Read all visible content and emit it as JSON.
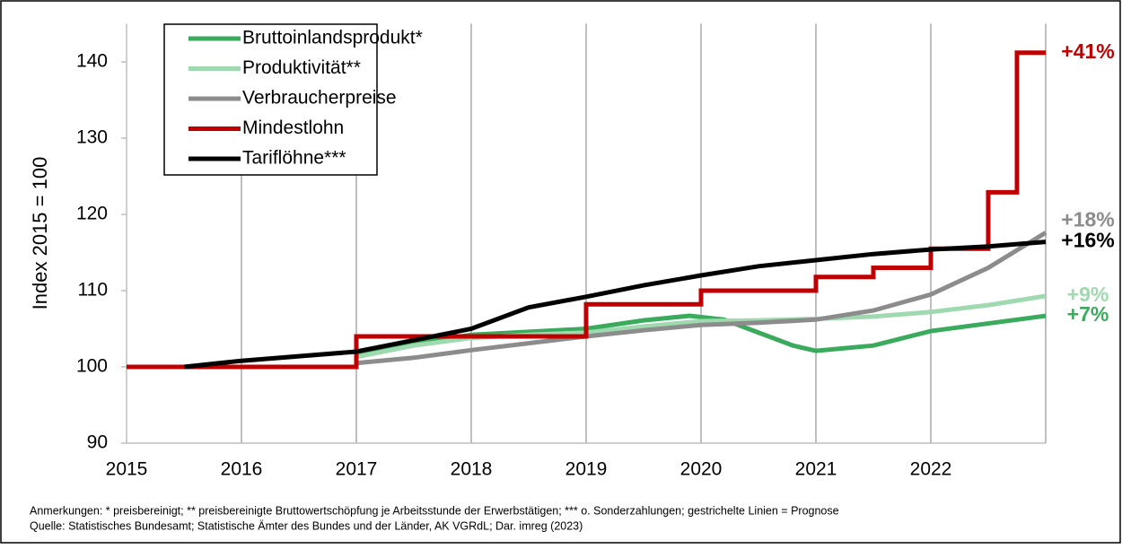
{
  "chart_data": {
    "type": "line",
    "ylabel": "Index 2015 = 100",
    "xlim": [
      2015,
      2023
    ],
    "xticks": [
      2015,
      2016,
      2017,
      2018,
      2019,
      2020,
      2021,
      2022
    ],
    "ylim": [
      90,
      145
    ],
    "yticks": [
      90,
      100,
      110,
      120,
      130,
      140
    ],
    "grid": true,
    "legend": "upper left",
    "series": [
      {
        "name": "Bruttoinlandsprodukt*",
        "color": "#3aaa5c",
        "end_label": "+7%",
        "x": [
          2017,
          2017.5,
          2018,
          2018.5,
          2019,
          2019.5,
          2019.9,
          2020.2,
          2020.5,
          2020.8,
          2021,
          2021.5,
          2022,
          2022.5,
          2023
        ],
        "values": [
          101.8,
          103.1,
          104.2,
          104.6,
          105,
          106.1,
          106.7,
          106.2,
          104.5,
          102.8,
          102.1,
          102.8,
          104.7,
          105.7,
          106.7
        ]
      },
      {
        "name": "Produktivität**",
        "color": "#9fd9b0",
        "end_label": "+9%",
        "x": [
          2017,
          2017.5,
          2018,
          2018.5,
          2019,
          2019.5,
          2020,
          2020.5,
          2021,
          2021.5,
          2022,
          2022.5,
          2023
        ],
        "values": [
          101.3,
          102.8,
          103.8,
          104.2,
          104.5,
          105.3,
          106,
          106.1,
          106.3,
          106.6,
          107.2,
          108.1,
          109.3
        ]
      },
      {
        "name": "Verbraucherpreise",
        "color": "#8c8c8c",
        "end_label": "+18%",
        "x": [
          2017,
          2017.5,
          2018,
          2018.5,
          2019,
          2019.5,
          2020,
          2020.5,
          2021,
          2021.5,
          2022,
          2022.5,
          2023
        ],
        "values": [
          100.5,
          101.2,
          102.2,
          103.1,
          104,
          104.8,
          105.5,
          105.8,
          106.2,
          107.4,
          109.5,
          113,
          117.6
        ]
      },
      {
        "name": "Mindestlohn",
        "color": "#c00000",
        "end_label": "+41%",
        "x": [
          2015,
          2017,
          2017,
          2019,
          2019,
          2020,
          2020,
          2021,
          2021,
          2021.5,
          2021.5,
          2022,
          2022,
          2022.5,
          2022.5,
          2022.75,
          2022.75,
          2023
        ],
        "values": [
          100,
          100,
          104,
          104,
          108.2,
          108.2,
          110,
          110,
          111.8,
          111.8,
          113,
          113,
          115.5,
          115.5,
          122.9,
          122.9,
          141.2,
          141.2
        ]
      },
      {
        "name": "Tariflöhne***",
        "color": "#000000",
        "end_label": "+16%",
        "x": [
          2015.5,
          2016,
          2017,
          2018,
          2018.5,
          2019,
          2019.5,
          2020,
          2020.5,
          2021,
          2021.5,
          2022,
          2022.5,
          2023
        ],
        "values": [
          100,
          100.8,
          102,
          105,
          107.8,
          109.2,
          110.7,
          112,
          113.2,
          114,
          114.8,
          115.4,
          115.8,
          116.4
        ]
      }
    ],
    "notes": [
      "Anmerkungen: * preisbereinigt; ** preisbereinigte Bruttowertschöpfung je Arbeitsstunde der Erwerbstätigen; *** o. Sonderzahlungen; gestrichelte Linien = Prognose",
      "Quelle: Statistisches Bundesamt; Statistische Ämter des Bundes und der Länder, AK VGRdL; Dar. imreg (2023)"
    ]
  }
}
